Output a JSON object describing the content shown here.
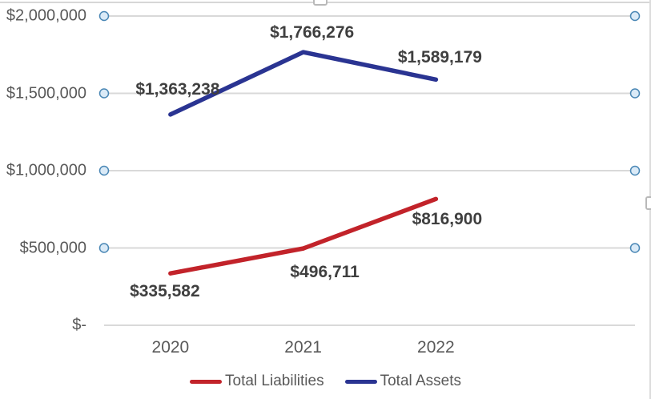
{
  "chart_data": {
    "type": "line",
    "title": "",
    "categories": [
      "2020",
      "2021",
      "2022"
    ],
    "series": [
      {
        "name": "Total Liabilities",
        "color": "#c2232a",
        "values": [
          335582,
          496711,
          816900
        ],
        "data_labels": [
          "$335,582",
          "$496,711",
          "$816,900"
        ],
        "label_side": "below",
        "label_offsets": [
          [
            -7,
            23
          ],
          [
            27,
            30
          ],
          [
            14,
            26
          ]
        ]
      },
      {
        "name": "Total Assets",
        "color": "#2a3492",
        "values": [
          1363238,
          1766276,
          1589179
        ],
        "data_labels": [
          "$1,363,238",
          "$1,766,276",
          "$1,589,179"
        ],
        "label_side": "above",
        "label_offsets": [
          [
            9,
            -31
          ],
          [
            11,
            -24
          ],
          [
            5,
            -27
          ]
        ]
      }
    ],
    "y_axis": {
      "min": 0,
      "max": 2000000,
      "tick_interval": 500000,
      "ticks": [
        {
          "label": "$2,000,000",
          "value": 2000000
        },
        {
          "label": "$1,500,000",
          "value": 1500000
        },
        {
          "label": "$1,000,000",
          "value": 1000000
        },
        {
          "label": "$500,000",
          "value": 500000
        },
        {
          "label": "$-",
          "value": 0
        }
      ]
    },
    "grid": true,
    "gridline_end_markers": "circle",
    "legend": {
      "position": "bottom",
      "items": [
        {
          "label": "Total Liabilities",
          "color": "#c2232a"
        },
        {
          "label": "Total Assets",
          "color": "#2a3492"
        }
      ]
    }
  },
  "colors": {
    "gridline": "#d9d9d9",
    "axis_line": "#d9d9d9",
    "tick_label": "#595959",
    "data_label": "#3f3f3f",
    "marker_fill": "#daeaf7",
    "marker_stroke": "#4a87b5",
    "selection_border": "#d7d7d7",
    "selection_handle_border": "#b9b9b9"
  }
}
